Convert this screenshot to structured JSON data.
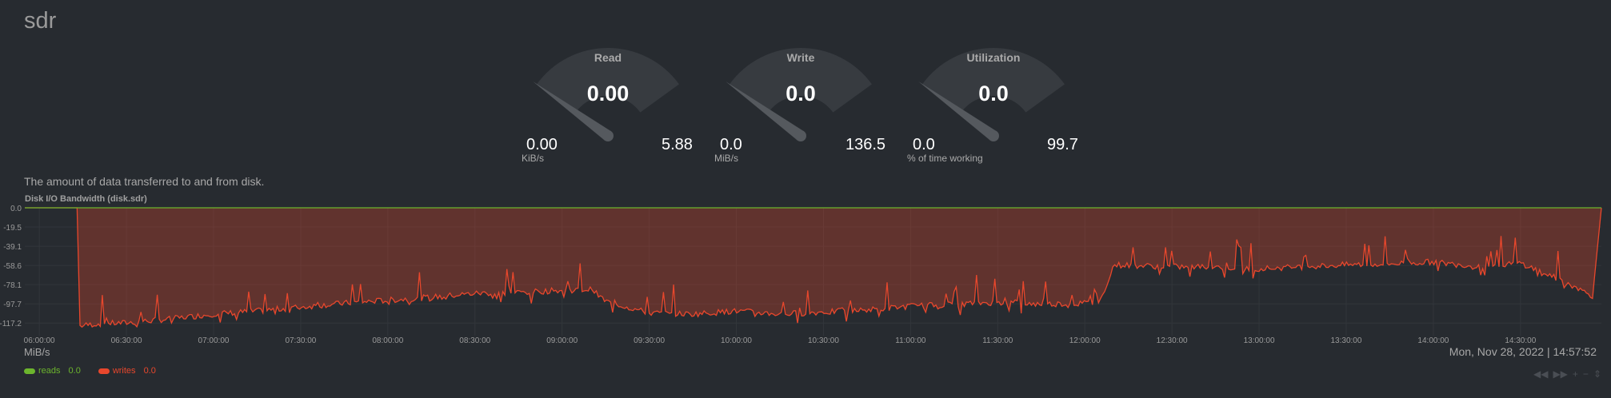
{
  "page": {
    "title": "sdr"
  },
  "gauges": [
    {
      "label": "Read",
      "value": "0.00",
      "min": "0.00",
      "max": "5.88",
      "unit": "KiB/s",
      "fraction": 0.0
    },
    {
      "label": "Write",
      "value": "0.0",
      "min": "0.0",
      "max": "136.5",
      "unit": "MiB/s",
      "fraction": 0.0
    },
    {
      "label": "Utilization",
      "value": "0.0",
      "min": "0.0",
      "max": "99.7",
      "unit": "% of time working",
      "fraction": 0.0
    }
  ],
  "description": "The amount of data transferred to and from disk.",
  "chart": {
    "title": "Disk I/O Bandwidth (disk.sdr)",
    "units": "MiB/s",
    "datetime": "Mon, Nov 28, 2022 | 14:57:52",
    "legend": [
      {
        "name": "reads",
        "value": "0.0",
        "color": "#6cb52d"
      },
      {
        "name": "writes",
        "value": "0.0",
        "color": "#e8472c"
      }
    ]
  },
  "chart_data": {
    "type": "area",
    "title": "Disk I/O Bandwidth (disk.sdr)",
    "ylabel": "MiB/s",
    "ylim": [
      -130.0,
      0.0
    ],
    "yticks": [
      "0.0",
      "-19.5",
      "-39.1",
      "-58.6",
      "-78.1",
      "-97.7",
      "-117.2"
    ],
    "ytick_values": [
      0.0,
      -19.5,
      -39.1,
      -58.6,
      -78.1,
      -97.7,
      -117.2
    ],
    "xlim": [
      "05:55:00",
      "14:57:52"
    ],
    "xticks": [
      "06:00:00",
      "06:30:00",
      "07:00:00",
      "07:30:00",
      "08:00:00",
      "08:30:00",
      "09:00:00",
      "09:30:00",
      "10:00:00",
      "10:30:00",
      "11:00:00",
      "11:30:00",
      "12:00:00",
      "12:30:00",
      "13:00:00",
      "13:30:00",
      "14:00:00",
      "14:30:00"
    ],
    "grid": true,
    "series": [
      {
        "name": "reads",
        "color": "#6cb52d",
        "points": [
          [
            "05:55",
            0.0
          ],
          [
            "14:57",
            0.0
          ]
        ]
      },
      {
        "name": "writes",
        "color": "#e8472c",
        "points": [
          [
            "05:55",
            0.0
          ],
          [
            "06:13",
            0.0
          ],
          [
            "06:14",
            -120
          ],
          [
            "06:20",
            -118
          ],
          [
            "06:30",
            -117
          ],
          [
            "06:45",
            -113
          ],
          [
            "07:00",
            -108
          ],
          [
            "07:15",
            -105
          ],
          [
            "07:30",
            -101
          ],
          [
            "07:45",
            -97
          ],
          [
            "08:00",
            -94
          ],
          [
            "08:15",
            -91
          ],
          [
            "08:30",
            -87
          ],
          [
            "08:45",
            -86
          ],
          [
            "09:00",
            -84
          ],
          [
            "09:10",
            -83
          ],
          [
            "09:15",
            -95
          ],
          [
            "09:30",
            -107
          ],
          [
            "09:45",
            -108
          ],
          [
            "10:00",
            -105
          ],
          [
            "10:15",
            -108
          ],
          [
            "10:30",
            -106
          ],
          [
            "10:45",
            -104
          ],
          [
            "11:00",
            -100
          ],
          [
            "11:15",
            -98
          ],
          [
            "11:30",
            -96
          ],
          [
            "11:45",
            -98
          ],
          [
            "12:00",
            -97
          ],
          [
            "12:05",
            -97
          ],
          [
            "12:10",
            -58
          ],
          [
            "12:30",
            -60
          ],
          [
            "12:45",
            -60
          ],
          [
            "13:00",
            -62
          ],
          [
            "13:15",
            -60
          ],
          [
            "13:30",
            -58
          ],
          [
            "13:45",
            -57
          ],
          [
            "14:00",
            -55
          ],
          [
            "14:15",
            -60
          ],
          [
            "14:30",
            -56
          ],
          [
            "14:45",
            -75
          ],
          [
            "14:55",
            -90
          ],
          [
            "14:57",
            0.0
          ]
        ]
      }
    ]
  }
}
